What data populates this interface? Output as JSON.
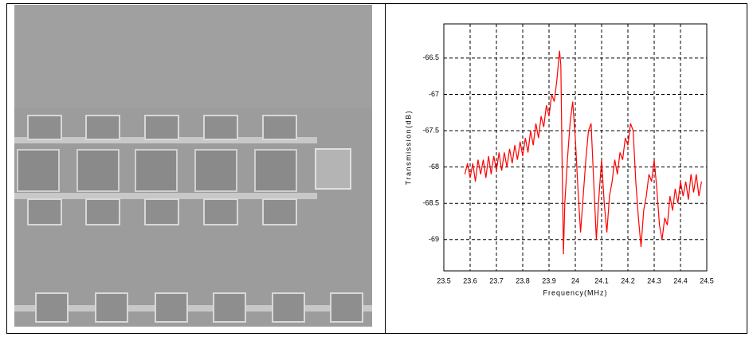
{
  "chart_data": {
    "type": "line",
    "xlabel": "Frequency(MHz)",
    "ylabel": "Transmission(dB)",
    "xlim": [
      23.5,
      24.5
    ],
    "ylim": [
      -69.43,
      -66.03
    ],
    "xticks": [
      23.5,
      23.6,
      23.7,
      23.8,
      23.9,
      24,
      24.1,
      24.2,
      24.3,
      24.4,
      24.5
    ],
    "yticks": [
      -69,
      -68.5,
      -68,
      -67.5,
      -67,
      -66.5
    ],
    "grid": true,
    "color": "#ff0000",
    "x": [
      23.58,
      23.59,
      23.6,
      23.61,
      23.62,
      23.63,
      23.64,
      23.65,
      23.66,
      23.67,
      23.68,
      23.69,
      23.7,
      23.71,
      23.72,
      23.73,
      23.74,
      23.75,
      23.76,
      23.77,
      23.78,
      23.79,
      23.8,
      23.81,
      23.82,
      23.83,
      23.84,
      23.85,
      23.86,
      23.87,
      23.88,
      23.89,
      23.9,
      23.91,
      23.92,
      23.93,
      23.94,
      23.945,
      23.95,
      23.955,
      23.96,
      23.97,
      23.98,
      23.99,
      24.0,
      24.01,
      24.02,
      24.03,
      24.04,
      24.05,
      24.06,
      24.07,
      24.08,
      24.09,
      24.1,
      24.11,
      24.12,
      24.13,
      24.14,
      24.15,
      24.16,
      24.17,
      24.18,
      24.19,
      24.2,
      24.21,
      24.22,
      24.23,
      24.24,
      24.25,
      24.26,
      24.27,
      24.28,
      24.29,
      24.3,
      24.31,
      24.32,
      24.33,
      24.34,
      24.35,
      24.36,
      24.37,
      24.38,
      24.39,
      24.4,
      24.41,
      24.42,
      24.43,
      24.44,
      24.45,
      24.46,
      24.47,
      24.48
    ],
    "values": [
      -68.1,
      -67.95,
      -68.15,
      -67.95,
      -68.2,
      -67.9,
      -68.1,
      -67.9,
      -68.15,
      -67.85,
      -68.1,
      -67.85,
      -68.05,
      -67.8,
      -68.05,
      -67.8,
      -68.0,
      -67.75,
      -67.95,
      -67.7,
      -67.9,
      -67.65,
      -67.85,
      -67.6,
      -67.8,
      -67.5,
      -67.7,
      -67.4,
      -67.6,
      -67.3,
      -67.45,
      -67.15,
      -67.3,
      -67.0,
      -67.1,
      -66.8,
      -66.4,
      -66.6,
      -68.0,
      -69.2,
      -68.5,
      -67.9,
      -67.4,
      -67.1,
      -67.6,
      -68.3,
      -68.9,
      -68.4,
      -67.9,
      -67.5,
      -67.4,
      -68.2,
      -69.0,
      -68.4,
      -67.9,
      -68.5,
      -68.9,
      -68.4,
      -68.2,
      -67.9,
      -68.1,
      -67.8,
      -67.9,
      -67.6,
      -67.7,
      -67.4,
      -67.5,
      -68.2,
      -68.7,
      -69.1,
      -68.6,
      -68.4,
      -68.1,
      -68.2,
      -67.9,
      -68.3,
      -68.8,
      -69.0,
      -68.7,
      -68.8,
      -68.4,
      -68.6,
      -68.3,
      -68.5,
      -68.2,
      -68.4,
      -68.2,
      -68.45,
      -68.1,
      -68.35,
      -68.1,
      -68.4,
      -68.2
    ]
  }
}
